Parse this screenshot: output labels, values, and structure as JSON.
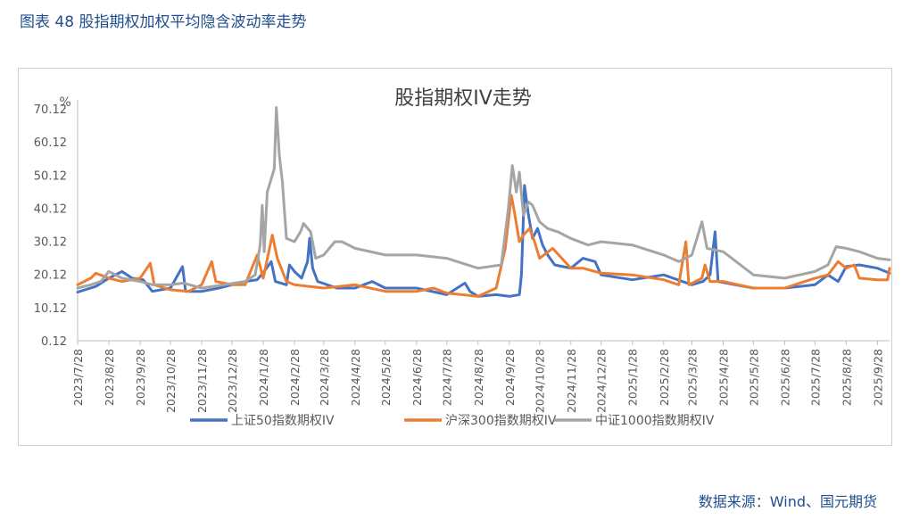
{
  "figure_title": "图表 48  股指期权加权平均隐含波动率走势",
  "source": "数据来源：Wind、国元期货",
  "chart_data": {
    "type": "line",
    "title": "股指期权IV走势",
    "ylabel": "%",
    "ylim": [
      0.12,
      70.12
    ],
    "yticks": [
      "0.12",
      "10.12",
      "20.12",
      "30.12",
      "40.12",
      "50.12",
      "60.12",
      "70.12"
    ],
    "x_start": "2023/7/28",
    "x_end": "2025/10/10",
    "xticks": [
      "2023/7/28",
      "2023/8/28",
      "2023/9/28",
      "2023/10/28",
      "2023/11/28",
      "2023/12/28",
      "2024/1/28",
      "2024/2/28",
      "2024/3/28",
      "2024/4/28",
      "2024/5/28",
      "2024/6/28",
      "2024/7/28",
      "2024/8/28",
      "2024/9/28",
      "2024/10/28",
      "2024/11/28",
      "2024/12/28",
      "2025/1/28",
      "2025/2/28",
      "2025/3/28",
      "2025/4/28",
      "2025/5/28",
      "2025/6/28",
      "2025/7/28",
      "2025/8/28",
      "2025/9/28"
    ],
    "legend_position": "bottom",
    "series": [
      {
        "name": "上证50指数期权IV",
        "color": "#4472c4",
        "points": [
          [
            "2023/7/28",
            14.8
          ],
          [
            "2023/8/15",
            16.5
          ],
          [
            "2023/8/28",
            19
          ],
          [
            "2023/9/10",
            21
          ],
          [
            "2023/9/20",
            19
          ],
          [
            "2023/10/1",
            18.5
          ],
          [
            "2023/10/10",
            15
          ],
          [
            "2023/10/28",
            16
          ],
          [
            "2023/11/9",
            22.5
          ],
          [
            "2023/11/12",
            15
          ],
          [
            "2023/11/28",
            15
          ],
          [
            "2023/12/15",
            16
          ],
          [
            "2023/12/28",
            17
          ],
          [
            "2024/1/10",
            18
          ],
          [
            "2024/1/22",
            18.5
          ],
          [
            "2024/1/29",
            21
          ],
          [
            "2024/2/5",
            24
          ],
          [
            "2024/2/9",
            18
          ],
          [
            "2024/2/20",
            17
          ],
          [
            "2024/2/23",
            23
          ],
          [
            "2024/2/28",
            21
          ],
          [
            "2024/3/6",
            19
          ],
          [
            "2024/3/12",
            24
          ],
          [
            "2024/3/14",
            31
          ],
          [
            "2024/3/17",
            22
          ],
          [
            "2024/3/22",
            18
          ],
          [
            "2024/4/10",
            16
          ],
          [
            "2024/4/28",
            16
          ],
          [
            "2024/5/15",
            18
          ],
          [
            "2024/5/28",
            16
          ],
          [
            "2024/6/28",
            16
          ],
          [
            "2024/7/28",
            14
          ],
          [
            "2024/8/15",
            17.5
          ],
          [
            "2024/8/20",
            15
          ],
          [
            "2024/8/28",
            13.5
          ],
          [
            "2024/9/15",
            14
          ],
          [
            "2024/9/28",
            13.5
          ],
          [
            "2024/10/8",
            14
          ],
          [
            "2024/10/10",
            20
          ],
          [
            "2024/10/13",
            47
          ],
          [
            "2024/10/17",
            38
          ],
          [
            "2024/10/21",
            31
          ],
          [
            "2024/10/26",
            34
          ],
          [
            "2024/10/31",
            29
          ],
          [
            "2024/11/5",
            26
          ],
          [
            "2024/11/12",
            23
          ],
          [
            "2024/11/28",
            22
          ],
          [
            "2024/12/10",
            25
          ],
          [
            "2024/12/22",
            24
          ],
          [
            "2024/12/28",
            20
          ],
          [
            "2025/1/28",
            18.5
          ],
          [
            "2025/2/28",
            20
          ],
          [
            "2025/3/28",
            17
          ],
          [
            "2025/4/8",
            18
          ],
          [
            "2025/4/15",
            20
          ],
          [
            "2025/4/20",
            33
          ],
          [
            "2025/4/23",
            18
          ],
          [
            "2025/5/10",
            17
          ],
          [
            "2025/5/28",
            16
          ],
          [
            "2025/6/28",
            16
          ],
          [
            "2025/7/28",
            17
          ],
          [
            "2025/8/10",
            20
          ],
          [
            "2025/8/20",
            18
          ],
          [
            "2025/8/28",
            22.5
          ],
          [
            "2025/9/10",
            23
          ],
          [
            "2025/9/28",
            22
          ],
          [
            "2025/10/10",
            20.5
          ]
        ]
      },
      {
        "name": "沪深300指数期权IV",
        "color": "#ed7d31",
        "points": [
          [
            "2023/7/28",
            17
          ],
          [
            "2023/8/10",
            19
          ],
          [
            "2023/8/15",
            20.5
          ],
          [
            "2023/8/28",
            19
          ],
          [
            "2023/9/10",
            18
          ],
          [
            "2023/9/28",
            19
          ],
          [
            "2023/10/8",
            23.5
          ],
          [
            "2023/10/12",
            17
          ],
          [
            "2023/10/28",
            15.5
          ],
          [
            "2023/11/15",
            15
          ],
          [
            "2023/11/28",
            17
          ],
          [
            "2023/12/8",
            24
          ],
          [
            "2023/12/12",
            18
          ],
          [
            "2023/12/28",
            17
          ],
          [
            "2024/1/10",
            17
          ],
          [
            "2024/1/22",
            26
          ],
          [
            "2024/1/28",
            19
          ],
          [
            "2024/2/6",
            32
          ],
          [
            "2024/2/11",
            25
          ],
          [
            "2024/2/20",
            18
          ],
          [
            "2024/2/28",
            17
          ],
          [
            "2024/3/28",
            16
          ],
          [
            "2024/4/28",
            17
          ],
          [
            "2024/5/28",
            15
          ],
          [
            "2024/6/28",
            15
          ],
          [
            "2024/7/15",
            16
          ],
          [
            "2024/7/28",
            14.5
          ],
          [
            "2024/8/28",
            13.5
          ],
          [
            "2024/9/15",
            16
          ],
          [
            "2024/9/24",
            28
          ],
          [
            "2024/9/30",
            44
          ],
          [
            "2024/10/3",
            39
          ],
          [
            "2024/10/8",
            30
          ],
          [
            "2024/10/12",
            32
          ],
          [
            "2024/10/18",
            34
          ],
          [
            "2024/10/23",
            30
          ],
          [
            "2024/10/28",
            25
          ],
          [
            "2024/11/10",
            28
          ],
          [
            "2024/11/28",
            22
          ],
          [
            "2024/12/10",
            22
          ],
          [
            "2024/12/28",
            20.5
          ],
          [
            "2025/1/28",
            20
          ],
          [
            "2025/2/28",
            18.5
          ],
          [
            "2025/3/15",
            17
          ],
          [
            "2025/3/22",
            30
          ],
          [
            "2025/3/25",
            17
          ],
          [
            "2025/4/7",
            19
          ],
          [
            "2025/4/10",
            23
          ],
          [
            "2025/4/15",
            18
          ],
          [
            "2025/4/28",
            18
          ],
          [
            "2025/5/28",
            16
          ],
          [
            "2025/6/28",
            16
          ],
          [
            "2025/7/28",
            19
          ],
          [
            "2025/8/10",
            20
          ],
          [
            "2025/8/20",
            24
          ],
          [
            "2025/8/28",
            22
          ],
          [
            "2025/9/5",
            23
          ],
          [
            "2025/9/10",
            19
          ],
          [
            "2025/9/28",
            18.5
          ],
          [
            "2025/10/8",
            18.5
          ],
          [
            "2025/10/10",
            22
          ]
        ]
      },
      {
        "name": "中证1000指数期权IV",
        "color": "#a5a5a5",
        "points": [
          [
            "2023/7/28",
            16
          ],
          [
            "2023/8/10",
            17
          ],
          [
            "2023/8/20",
            18
          ],
          [
            "2023/8/28",
            21
          ],
          [
            "2023/9/10",
            19
          ],
          [
            "2023/9/28",
            18
          ],
          [
            "2023/10/10",
            17
          ],
          [
            "2023/10/28",
            17
          ],
          [
            "2023/11/10",
            17.5
          ],
          [
            "2023/11/28",
            16
          ],
          [
            "2023/12/20",
            17
          ],
          [
            "2024/1/10",
            18
          ],
          [
            "2024/1/20",
            20
          ],
          [
            "2024/1/25",
            29
          ],
          [
            "2024/1/27",
            41
          ],
          [
            "2024/1/29",
            27
          ],
          [
            "2024/2/1",
            45
          ],
          [
            "2024/2/8",
            52
          ],
          [
            "2024/2/10",
            70.5
          ],
          [
            "2024/2/13",
            56
          ],
          [
            "2024/2/16",
            48
          ],
          [
            "2024/2/20",
            31
          ],
          [
            "2024/2/28",
            30
          ],
          [
            "2024/3/5",
            33
          ],
          [
            "2024/3/8",
            35.5
          ],
          [
            "2024/3/15",
            33
          ],
          [
            "2024/3/20",
            25
          ],
          [
            "2024/3/28",
            26
          ],
          [
            "2024/4/8",
            30
          ],
          [
            "2024/4/15",
            30
          ],
          [
            "2024/4/28",
            28
          ],
          [
            "2024/5/28",
            26
          ],
          [
            "2024/6/28",
            26
          ],
          [
            "2024/7/28",
            25
          ],
          [
            "2024/8/28",
            22
          ],
          [
            "2024/9/20",
            23
          ],
          [
            "2024/9/27",
            40
          ],
          [
            "2024/10/1",
            53
          ],
          [
            "2024/10/5",
            45
          ],
          [
            "2024/10/8",
            51
          ],
          [
            "2024/10/12",
            38
          ],
          [
            "2024/10/17",
            42
          ],
          [
            "2024/10/21",
            41
          ],
          [
            "2024/10/28",
            36
          ],
          [
            "2024/11/5",
            34
          ],
          [
            "2024/11/15",
            33
          ],
          [
            "2024/11/28",
            31
          ],
          [
            "2024/12/15",
            29
          ],
          [
            "2024/12/28",
            30
          ],
          [
            "2025/1/28",
            29
          ],
          [
            "2025/2/28",
            26
          ],
          [
            "2025/3/15",
            24
          ],
          [
            "2025/3/28",
            26
          ],
          [
            "2025/4/7",
            36
          ],
          [
            "2025/4/12",
            28
          ],
          [
            "2025/4/28",
            27
          ],
          [
            "2025/5/28",
            20
          ],
          [
            "2025/6/28",
            19
          ],
          [
            "2025/7/28",
            21
          ],
          [
            "2025/8/10",
            23
          ],
          [
            "2025/8/18",
            28.5
          ],
          [
            "2025/8/28",
            28
          ],
          [
            "2025/9/10",
            27
          ],
          [
            "2025/9/28",
            25
          ],
          [
            "2025/10/10",
            24.5
          ]
        ]
      }
    ]
  }
}
